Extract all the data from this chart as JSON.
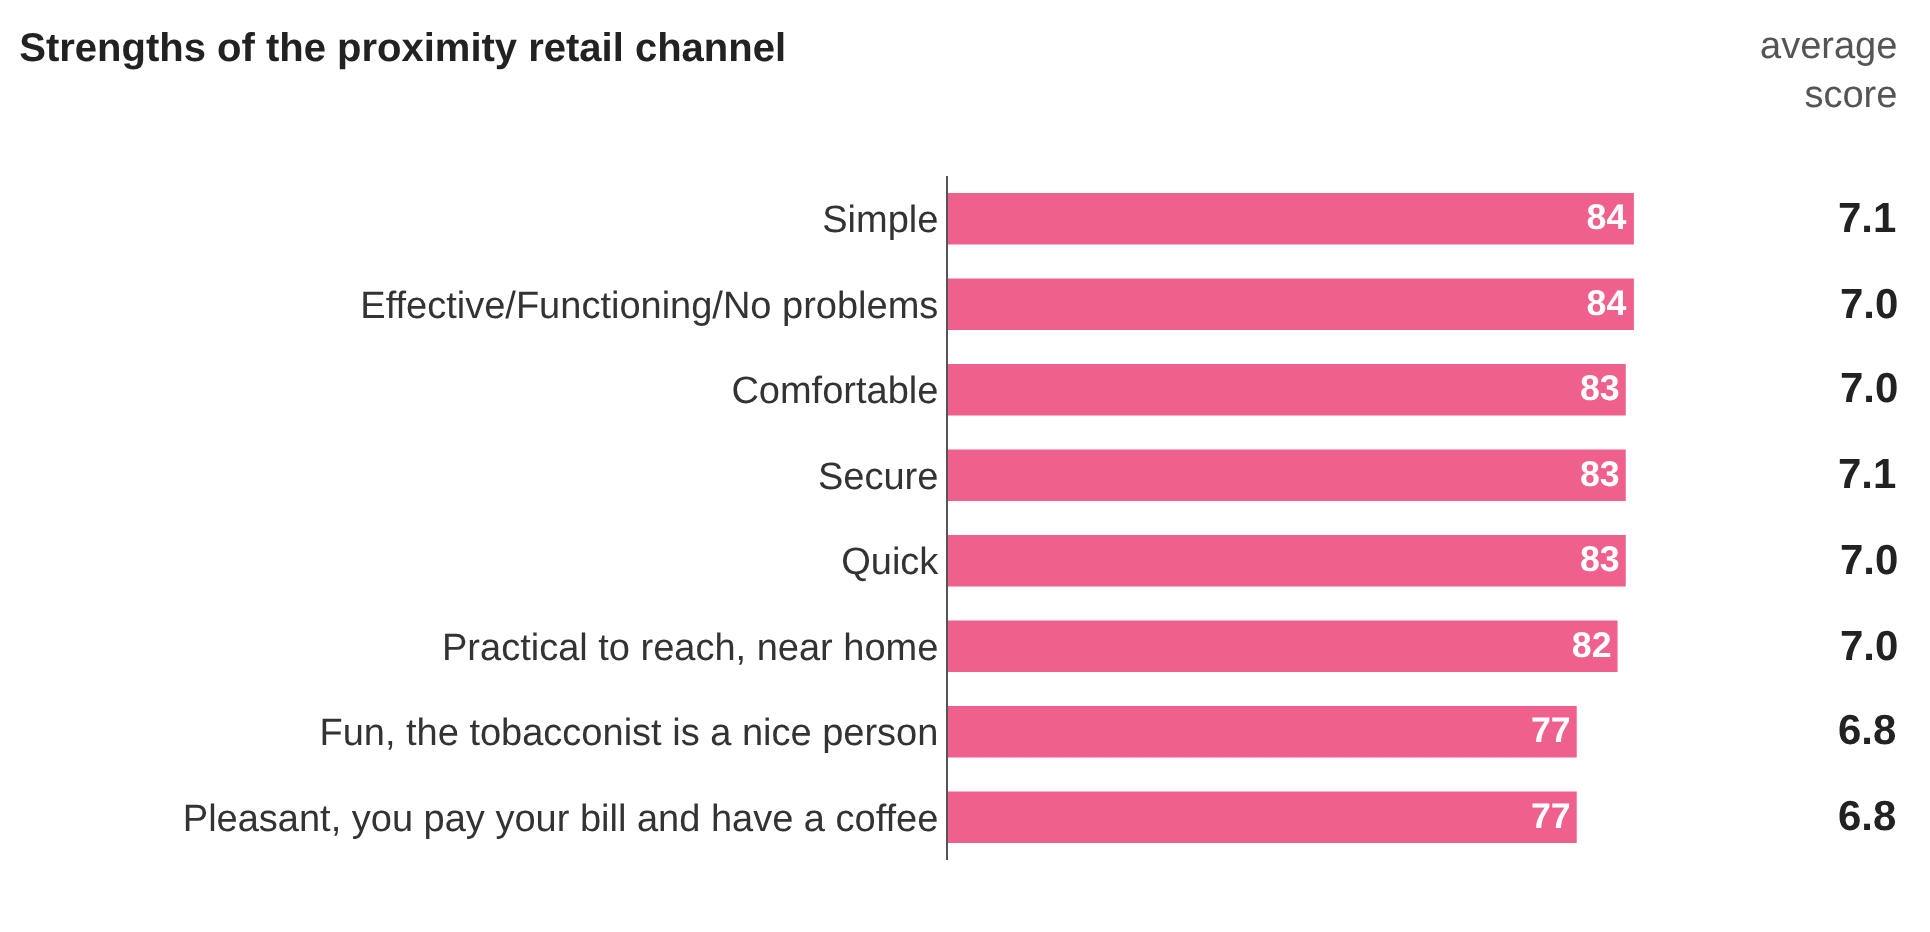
{
  "chart_data": {
    "type": "bar",
    "orientation": "horizontal",
    "title": "Strengths of the proximity retail channel",
    "categories": [
      "Simple",
      "Effective/Functioning/No problems",
      "Comfortable",
      "Secure",
      "Quick",
      "Practical to reach, near home",
      "Fun, the tobacconist is a nice person",
      "Pleasant, you pay your bill and have a coffee"
    ],
    "values": [
      84,
      84,
      83,
      83,
      83,
      82,
      77,
      77
    ],
    "color": "#f0608c",
    "data_labels": true,
    "tick_labels": "y",
    "annotations": [
      "average\nscore",
      "7.1",
      "7.0",
      "7.0",
      "7.1",
      "7.0",
      "7.0",
      "6.8",
      "6.8"
    ]
  }
}
